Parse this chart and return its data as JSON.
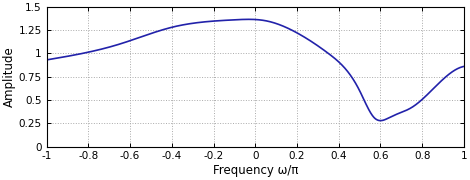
{
  "xlabel": "Frequency ω/π",
  "ylabel": "Amplitude",
  "xlim": [
    -1,
    1
  ],
  "ylim": [
    0,
    1.5
  ],
  "yticks": [
    0,
    0.25,
    0.5,
    0.75,
    1,
    1.25,
    1.5
  ],
  "xticks": [
    -1,
    -0.8,
    -0.6,
    -0.4,
    -0.2,
    0,
    0.2,
    0.4,
    0.6,
    0.8,
    1
  ],
  "xtick_labels": [
    "-1",
    "-0.8",
    "-0.6",
    "-0.4",
    "-0.2",
    "0",
    "0.2",
    "0.4",
    "0.6",
    "0.8",
    "1"
  ],
  "line_color": "#2222aa",
  "line_width": 1.2,
  "grid_color": "#aaaaaa",
  "grid_style": "dotted",
  "background_color": "#ffffff",
  "figsize": [
    4.7,
    1.8
  ],
  "dpi": 100,
  "x_pts": [
    -1.0,
    -0.85,
    -0.65,
    -0.4,
    -0.1,
    0.05,
    0.2,
    0.35,
    0.5,
    0.57,
    0.65,
    0.75,
    0.88,
    1.0
  ],
  "y_pts": [
    0.93,
    0.99,
    1.1,
    1.28,
    1.36,
    1.35,
    1.22,
    1.0,
    0.6,
    0.31,
    0.32,
    0.42,
    0.68,
    0.86
  ]
}
